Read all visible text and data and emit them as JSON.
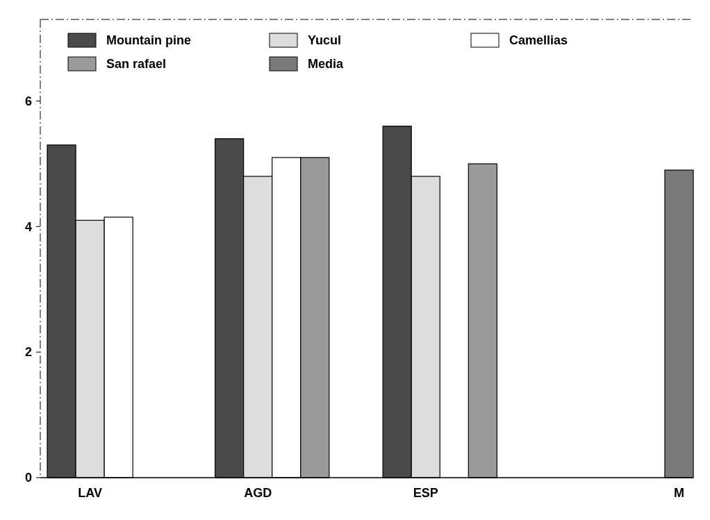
{
  "chart_data": {
    "type": "bar",
    "categories": [
      "LAV",
      "AGD",
      "ESP",
      "M"
    ],
    "series": [
      {
        "name": "Mountain pine",
        "color": "#4a4a4a",
        "values": [
          5.3,
          5.4,
          5.6,
          null
        ]
      },
      {
        "name": "Yucul",
        "color": "#dddddd",
        "values": [
          4.1,
          4.8,
          4.8,
          null
        ]
      },
      {
        "name": "Camellias",
        "color": "#ffffff",
        "values": [
          4.15,
          5.1,
          null,
          null
        ]
      },
      {
        "name": "San rafael",
        "color": "#9a9a9a",
        "values": [
          null,
          5.1,
          5.0,
          null
        ]
      },
      {
        "name": "Media",
        "color": "#7a7a7a",
        "values": [
          null,
          null,
          null,
          4.9
        ]
      }
    ],
    "ylim": [
      0,
      7.3
    ],
    "yticks": [
      0,
      2,
      4,
      6
    ],
    "grid": false,
    "legend": "top left"
  }
}
